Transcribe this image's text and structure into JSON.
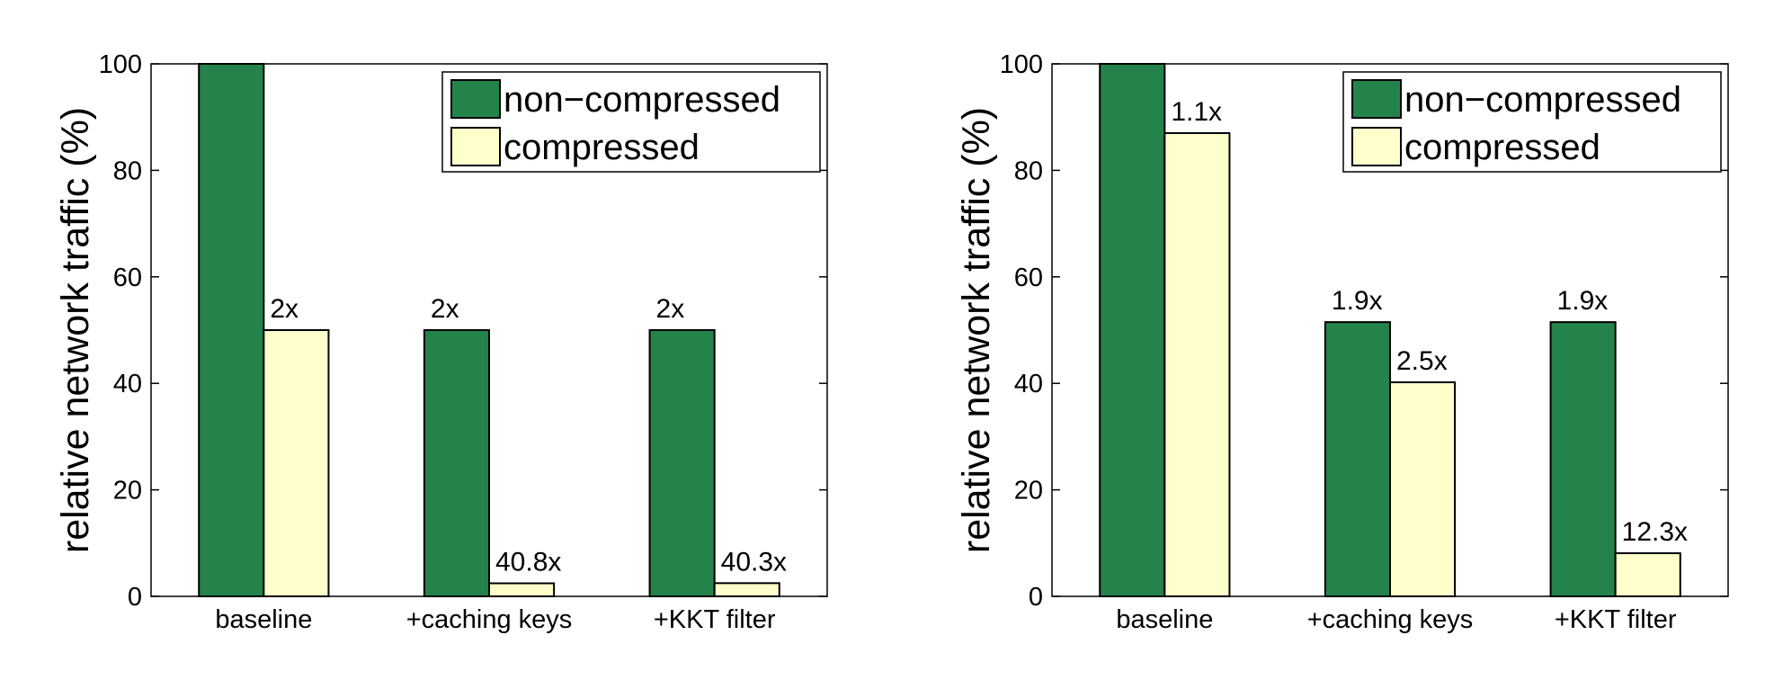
{
  "chart_data": [
    {
      "type": "bar",
      "y_label": "relative network traffic (%)",
      "categories": [
        "baseline",
        "+caching keys",
        "+KKT filter"
      ],
      "series": [
        {
          "name": "non−compressed",
          "color": "#23834a",
          "values": [
            100,
            50,
            50
          ]
        },
        {
          "name": "compressed",
          "color": "#ffffcc",
          "values": [
            50,
            2.45,
            2.48
          ]
        }
      ],
      "annotations": [
        {
          "text": "2x",
          "series": 1,
          "category": 0
        },
        {
          "text": "2x",
          "series": 0,
          "category": 1
        },
        {
          "text": "40.8x",
          "series": 1,
          "category": 1
        },
        {
          "text": "2x",
          "series": 0,
          "category": 2
        },
        {
          "text": "40.3x",
          "series": 1,
          "category": 2
        }
      ],
      "ylim": [
        0,
        100
      ],
      "yticks": [
        0,
        20,
        40,
        60,
        80,
        100
      ],
      "legend": "upper right"
    },
    {
      "type": "bar",
      "y_label": "relative network traffic (%)",
      "categories": [
        "baseline",
        "+caching keys",
        "+KKT filter"
      ],
      "series": [
        {
          "name": "non−compressed",
          "color": "#23834a",
          "values": [
            100,
            51.5,
            51.5
          ]
        },
        {
          "name": "compressed",
          "color": "#ffffcc",
          "values": [
            87,
            40.2,
            8.1
          ]
        }
      ],
      "annotations": [
        {
          "text": "1.1x",
          "series": 1,
          "category": 0
        },
        {
          "text": "1.9x",
          "series": 0,
          "category": 1
        },
        {
          "text": "2.5x",
          "series": 1,
          "category": 1
        },
        {
          "text": "1.9x",
          "series": 0,
          "category": 2
        },
        {
          "text": "12.3x",
          "series": 1,
          "category": 2
        }
      ],
      "ylim": [
        0,
        100
      ],
      "yticks": [
        0,
        20,
        40,
        60,
        80,
        100
      ],
      "legend": "upper right"
    }
  ]
}
